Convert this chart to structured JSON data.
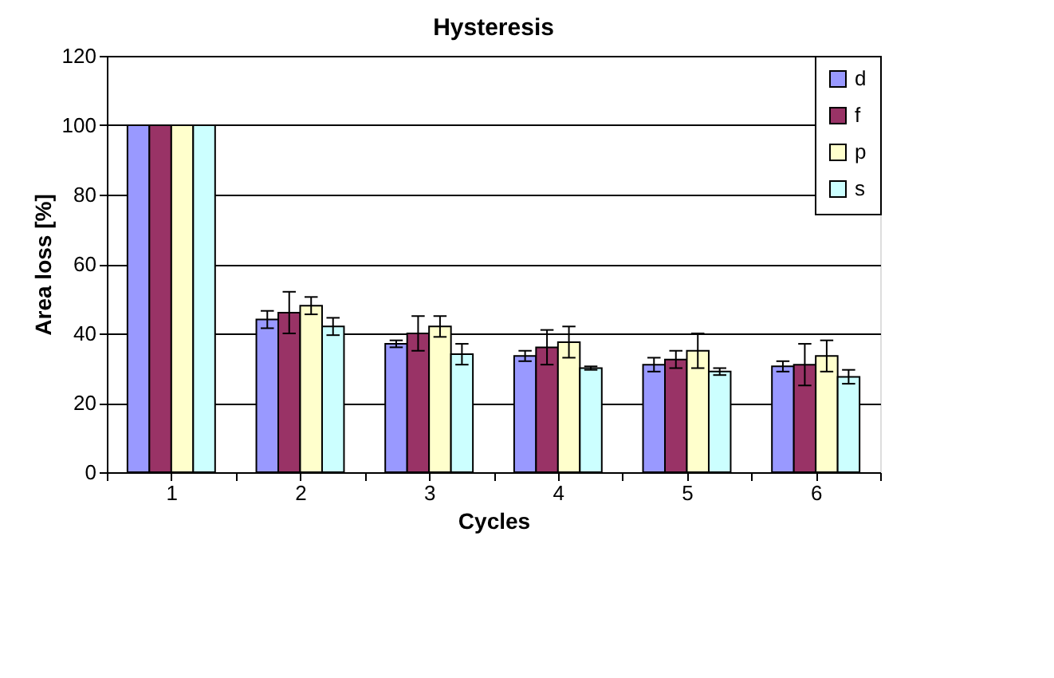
{
  "chart_data": {
    "type": "bar",
    "title": "Hysteresis",
    "xlabel": "Cycles",
    "ylabel": "Area loss [%]",
    "categories": [
      "1",
      "2",
      "3",
      "4",
      "5",
      "6"
    ],
    "series": [
      {
        "name": "d",
        "color": "#9999ff",
        "values": [
          100,
          44,
          37,
          33.5,
          31,
          30.5
        ],
        "errors": [
          null,
          2.5,
          1,
          1.5,
          2,
          1.5
        ]
      },
      {
        "name": "f",
        "color": "#993366",
        "values": [
          100,
          46,
          40,
          36,
          32.5,
          31
        ],
        "errors": [
          null,
          6,
          5,
          5,
          2.5,
          6
        ]
      },
      {
        "name": "p",
        "color": "#ffffcc",
        "values": [
          100,
          48,
          42,
          37.5,
          35,
          33.5
        ],
        "errors": [
          null,
          2.5,
          3,
          4.5,
          5,
          4.5
        ]
      },
      {
        "name": "s",
        "color": "#ccffff",
        "values": [
          100,
          42,
          34,
          30,
          29,
          27.5
        ],
        "errors": [
          null,
          2.5,
          3,
          0.5,
          1,
          2
        ]
      }
    ],
    "ylim": [
      0,
      120
    ],
    "yticks": [
      0,
      20,
      40,
      60,
      80,
      100,
      120
    ],
    "grid": "y",
    "legend": "top right"
  }
}
